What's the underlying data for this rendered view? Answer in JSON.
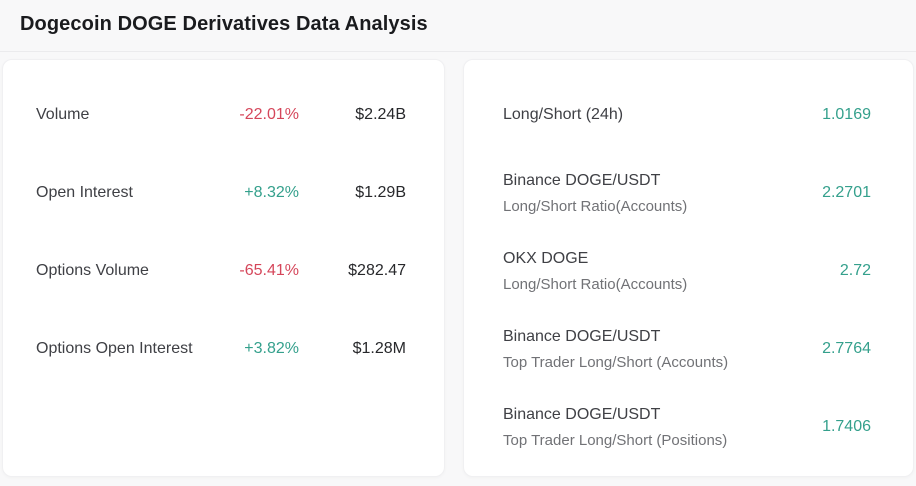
{
  "page": {
    "title": "Dogecoin DOGE Derivatives Data Analysis"
  },
  "colors": {
    "up": "#34a08c",
    "down": "#d5465a",
    "ratio_value": "#34a08c"
  },
  "derivatives": {
    "rows": [
      {
        "label": "Volume",
        "change": "-22.01%",
        "direction": "down",
        "value": "$2.24B"
      },
      {
        "label": "Open Interest",
        "change": "+8.32%",
        "direction": "up",
        "value": "$1.29B"
      },
      {
        "label": "Options Volume",
        "change": "-65.41%",
        "direction": "down",
        "value": "$282.47"
      },
      {
        "label": "Options Open Interest",
        "change": "+3.82%",
        "direction": "up",
        "value": "$1.28M"
      }
    ]
  },
  "ratios": {
    "rows": [
      {
        "label": "Long/Short (24h)",
        "sublabel": "",
        "value": "1.0169"
      },
      {
        "label": "Binance DOGE/USDT",
        "sublabel": "Long/Short Ratio(Accounts)",
        "value": "2.2701"
      },
      {
        "label": "OKX DOGE",
        "sublabel": "Long/Short Ratio(Accounts)",
        "value": "2.72"
      },
      {
        "label": "Binance DOGE/USDT",
        "sublabel": "Top Trader Long/Short (Accounts)",
        "value": "2.7764"
      },
      {
        "label": "Binance DOGE/USDT",
        "sublabel": "Top Trader Long/Short (Positions)",
        "value": "1.7406"
      }
    ]
  }
}
